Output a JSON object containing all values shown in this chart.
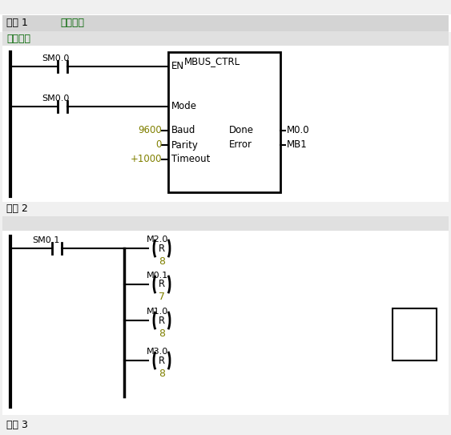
{
  "fig_w": 5.63,
  "fig_h": 5.43,
  "dpi": 100,
  "bg_color": "#f0f0f0",
  "white": "#ffffff",
  "black": "#000000",
  "green": "#006400",
  "olive": "#808000",
  "gray_header": "#d4d4d4",
  "gray_comment": "#e0e0e0",
  "network1_label": "网络 1",
  "network1_title": "网络标题",
  "network1_comment": "网络注释",
  "network2_label": "网络 2",
  "network3_label": "网络 3",
  "sm00": "SM0.0",
  "sm01": "SM0.1",
  "mbus": "MBUS_CTRL",
  "en": "EN",
  "mode": "Mode",
  "baud_lbl": "Baud",
  "parity_lbl": "Parity",
  "timeout_lbl": "Timeout",
  "done_lbl": "Done",
  "error_lbl": "Error",
  "baud_val": "9600",
  "parity_val": "0",
  "timeout_val": "+1000",
  "done_out": "M0.0",
  "error_out": "MB1",
  "coils": [
    {
      "label": "M2.0",
      "r": "R",
      "n": "8"
    },
    {
      "label": "M0.1",
      "r": "R",
      "n": "7"
    },
    {
      "label": "M1.0",
      "r": "R",
      "n": "8"
    },
    {
      "label": "M3.0",
      "r": "R",
      "n": "8"
    }
  ]
}
